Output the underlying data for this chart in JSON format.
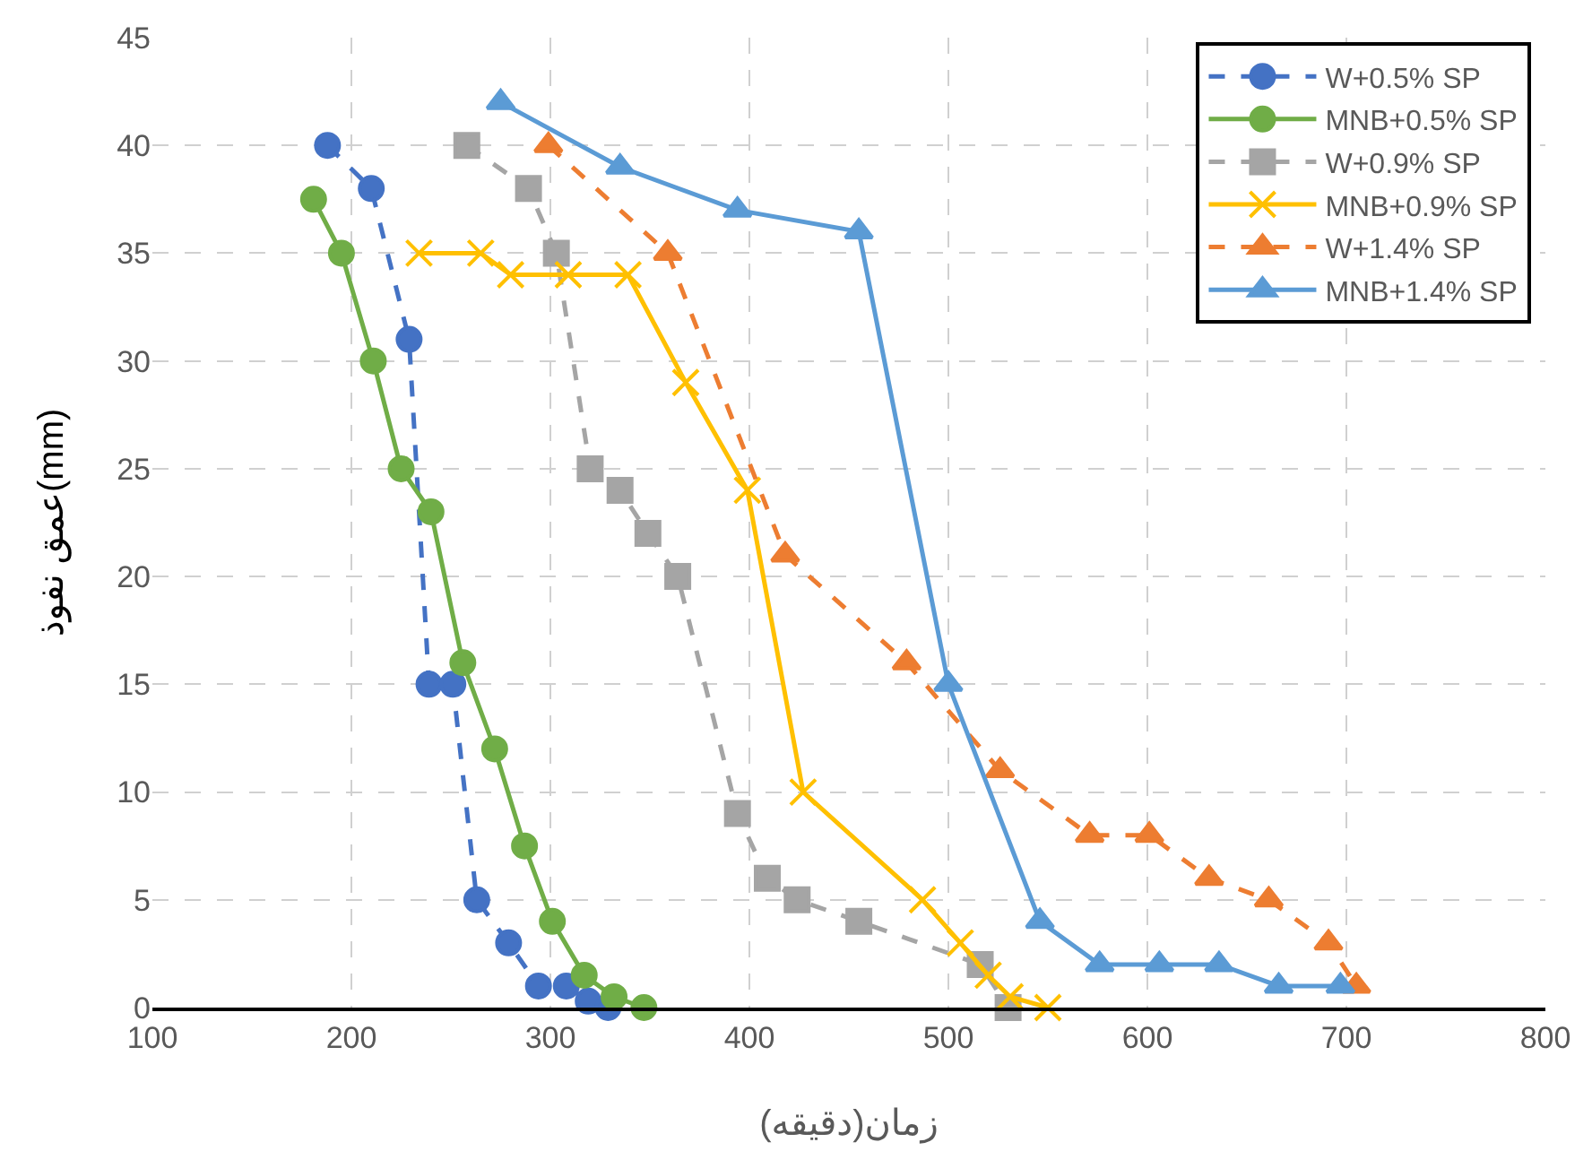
{
  "chart_data": {
    "type": "line",
    "xlabel": "زمان(دقیقه)",
    "ylabel": "عمق نفوذ(mm)",
    "xlim": [
      100,
      800
    ],
    "xticks": [
      100,
      200,
      300,
      400,
      500,
      600,
      700,
      800
    ],
    "ylim": [
      0,
      45
    ],
    "yticks": [
      0,
      5,
      10,
      15,
      20,
      25,
      30,
      35,
      40,
      45
    ],
    "grid": true,
    "legend": "top right",
    "series": [
      {
        "name": "W+0.5% SP",
        "color": "#4472c4",
        "marker": "circle",
        "line_style": "dashed",
        "x": [
          188,
          210,
          229,
          239,
          251,
          263,
          279,
          294,
          308,
          319,
          329
        ],
        "values": [
          40,
          38,
          31,
          15,
          15,
          5,
          3,
          1,
          1,
          0.3,
          0
        ]
      },
      {
        "name": "MNB+0.5% SP",
        "color": "#70ad47",
        "marker": "circle",
        "line_style": "solid",
        "x": [
          181,
          195,
          211,
          225,
          240,
          256,
          272,
          287,
          301,
          317,
          332,
          347
        ],
        "values": [
          37.5,
          35,
          30,
          25,
          23,
          16,
          12,
          7.5,
          4,
          1.5,
          0.5,
          0
        ]
      },
      {
        "name": "W+0.9% SP",
        "color": "#a5a5a5",
        "marker": "square",
        "line_style": "dashed",
        "x": [
          258,
          289,
          303,
          320,
          335,
          349,
          364,
          394,
          409,
          424,
          455,
          516,
          530
        ],
        "values": [
          40,
          38,
          35,
          25,
          24,
          22,
          20,
          9,
          6,
          5,
          4,
          2,
          0
        ]
      },
      {
        "name": "MNB+0.9% SP",
        "color": "#ffc000",
        "marker": "cross",
        "line_style": "solid",
        "x": [
          234,
          265,
          280,
          309,
          339,
          368,
          399,
          427,
          487,
          506,
          520,
          531,
          550
        ],
        "values": [
          35,
          35,
          34,
          34,
          34,
          29,
          24,
          10,
          5,
          3,
          1.5,
          0.5,
          0
        ]
      },
      {
        "name": "W+1.4% SP",
        "color": "#ed7d31",
        "marker": "triangle",
        "line_style": "dashed",
        "x": [
          299,
          359,
          418,
          479,
          526,
          571,
          601,
          631,
          661,
          691,
          705
        ],
        "values": [
          40,
          35,
          21,
          16,
          11,
          8,
          8,
          6,
          5,
          3,
          1
        ]
      },
      {
        "name": "MNB+1.4% SP",
        "color": "#5b9bd5",
        "marker": "triangle",
        "line_style": "solid",
        "x": [
          275,
          335,
          394,
          455,
          500,
          546,
          576,
          606,
          636,
          666,
          697
        ],
        "values": [
          42,
          39,
          37,
          36,
          15,
          4,
          2,
          2,
          2,
          1,
          1
        ]
      }
    ]
  }
}
